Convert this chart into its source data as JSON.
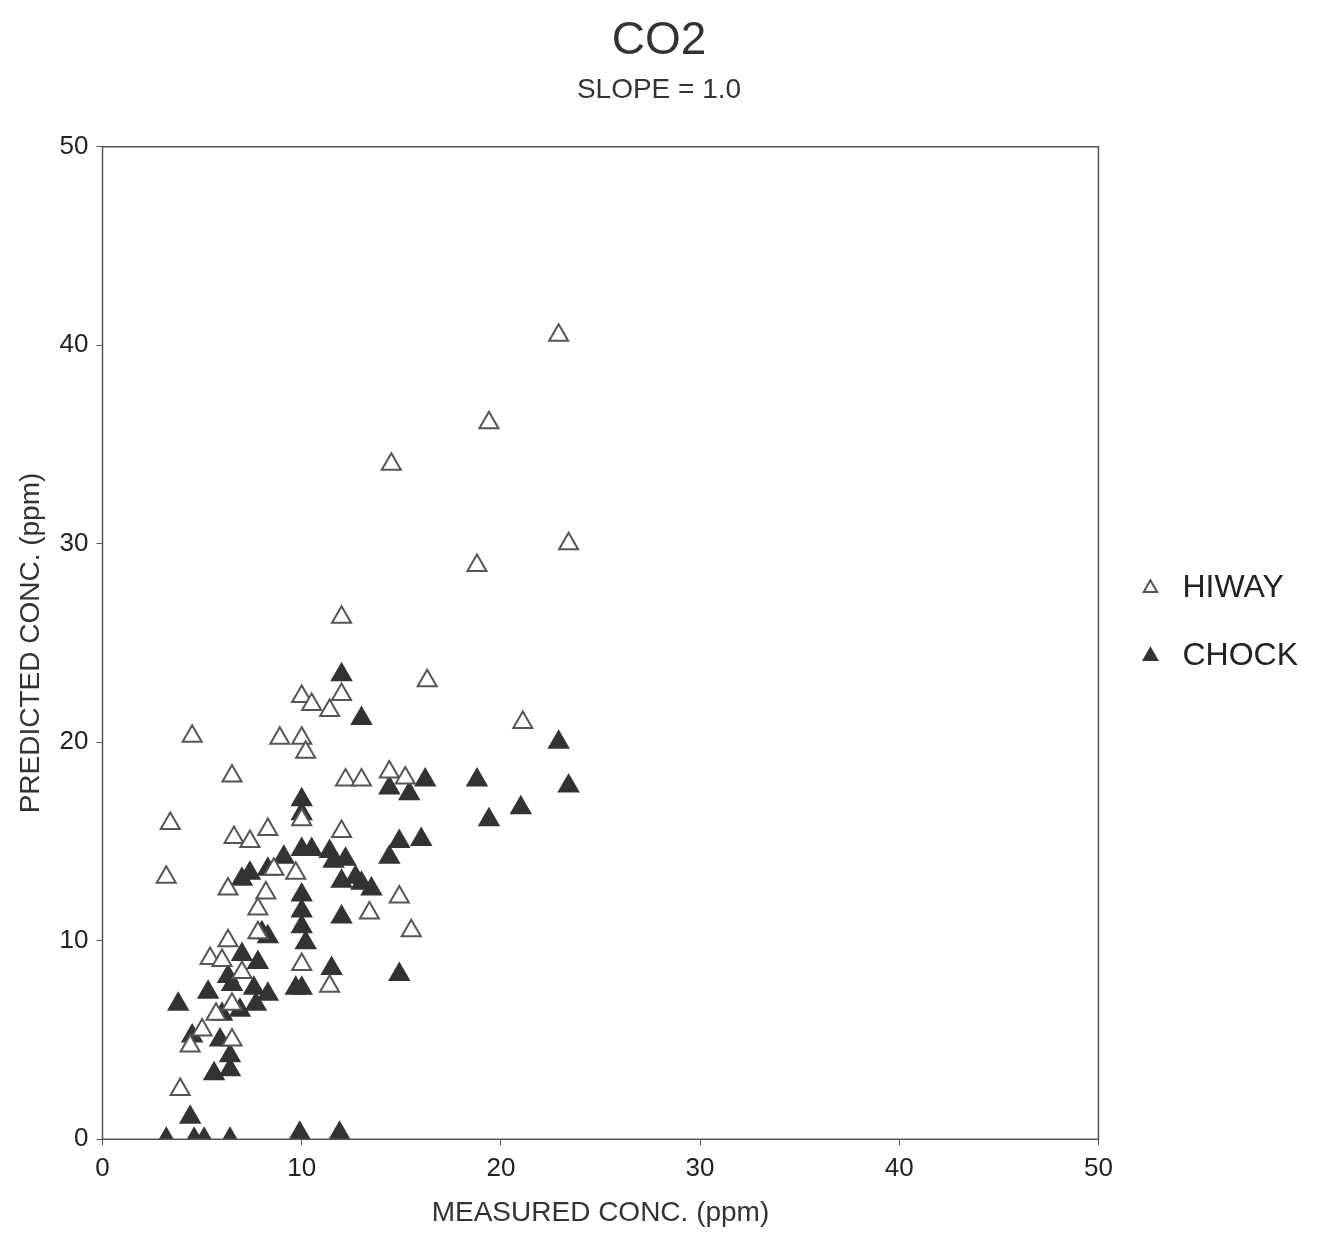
{
  "chart_data": {
    "type": "scatter",
    "title": "CO2",
    "subtitle": "SLOPE = 1.0",
    "xlabel": "MEASURED CONC. (ppm)",
    "ylabel": "PREDICTED CONC. (ppm)",
    "xlim": [
      0,
      50
    ],
    "ylim": [
      0,
      50
    ],
    "xticks": [
      0,
      10,
      20,
      30,
      40,
      50
    ],
    "yticks": [
      0,
      10,
      20,
      30,
      40,
      50
    ],
    "grid": false,
    "legend": "right",
    "series": [
      {
        "name": "HIWAY",
        "color": "#555555",
        "marker": "triangle-open",
        "x": [
          22.9,
          19.4,
          14.5,
          23.4,
          18.8,
          12.0,
          16.3,
          21.1,
          4.5,
          10.0,
          10.5,
          11.4,
          12.0,
          8.9,
          10.0,
          10.2,
          6.5,
          12.2,
          13.0,
          14.4,
          15.2,
          3.4,
          3.2,
          6.6,
          7.4,
          8.3,
          12.0,
          10.0,
          8.2,
          6.3,
          9.7,
          14.9,
          13.4,
          15.5,
          7.8,
          6.3,
          5.4,
          6.0,
          10.0,
          11.4,
          5.0,
          4.4,
          3.9,
          7.0,
          6.5,
          5.7,
          8.6,
          7.8,
          6.5
        ],
        "values": [
          40.5,
          36.1,
          34.0,
          30.0,
          28.9,
          26.3,
          23.1,
          21.0,
          20.3,
          22.3,
          21.9,
          21.6,
          22.4,
          20.2,
          20.2,
          19.5,
          18.3,
          18.1,
          18.1,
          18.5,
          18.2,
          15.9,
          13.2,
          15.2,
          15.0,
          15.6,
          15.5,
          16.1,
          12.4,
          12.6,
          13.4,
          12.2,
          11.4,
          10.5,
          11.6,
          10.0,
          9.1,
          9.0,
          8.8,
          7.7,
          5.5,
          4.7,
          2.5,
          8.4,
          6.8,
          6.3,
          13.6,
          10.4,
          5.0
        ]
      },
      {
        "name": "CHOCK",
        "color": "#333333",
        "marker": "triangle",
        "x": [
          12.0,
          13.0,
          22.9,
          23.4,
          18.8,
          21.0,
          19.4,
          14.4,
          15.4,
          16.2,
          16.0,
          14.9,
          14.4,
          10.0,
          10.0,
          10.0,
          10.5,
          11.4,
          11.6,
          12.2,
          12.0,
          12.7,
          13.0,
          13.5,
          10.0,
          10.0,
          10.0,
          10.2,
          12.0,
          11.5,
          14.9,
          10.0,
          9.7,
          9.1,
          8.3,
          7.4,
          7.0,
          8.0,
          8.3,
          7.8,
          7.0,
          6.3,
          6.5,
          7.6,
          8.3,
          7.7,
          6.9,
          6.0,
          5.3,
          3.8,
          4.5,
          5.9,
          6.4,
          6.4,
          5.6,
          4.4,
          3.2,
          4.6,
          5.1,
          6.4,
          9.9,
          11.9
        ],
        "values": [
          23.4,
          21.2,
          20.0,
          17.8,
          18.1,
          16.7,
          16.1,
          17.7,
          17.4,
          18.1,
          15.1,
          15.0,
          14.2,
          17.1,
          16.4,
          14.6,
          14.6,
          14.5,
          14.0,
          14.1,
          13.0,
          13.2,
          12.9,
          12.6,
          12.3,
          11.5,
          10.7,
          9.9,
          11.2,
          8.6,
          8.3,
          7.6,
          7.6,
          14.2,
          13.6,
          13.4,
          13.1,
          10.4,
          10.2,
          8.9,
          9.3,
          8.2,
          7.8,
          7.6,
          7.3,
          6.8,
          6.5,
          6.3,
          7.4,
          6.8,
          5.2,
          5.0,
          4.2,
          3.5,
          3.3,
          1.1,
          0,
          0,
          0,
          0,
          0.3,
          0.3
        ]
      }
    ]
  }
}
